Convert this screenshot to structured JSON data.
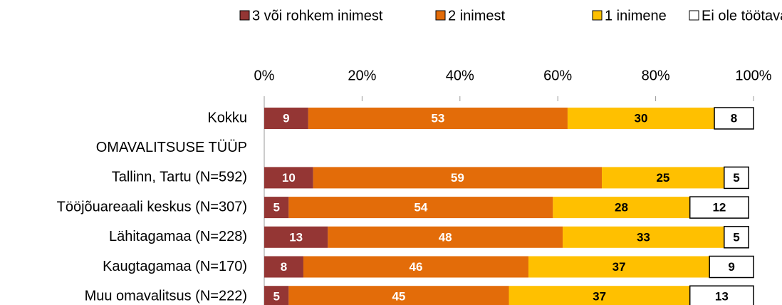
{
  "chart_data": {
    "type": "stacked_bar",
    "orientation": "horizontal",
    "categories": [
      "Kokku",
      "OMAVALITSUSE TÜÜP",
      "Tallinn, Tartu (N=592)",
      "Tööjõuareaali keskus (N=307)",
      "Lähitagamaa (N=228)",
      "Kaugtagamaa (N=170)",
      "Muu omavalitsus (N=222)"
    ],
    "series": [
      {
        "name": "3 või rohkem  inimest",
        "color": "#943634",
        "label_color": "#ffffff",
        "values": [
          9,
          null,
          10,
          5,
          13,
          8,
          5
        ]
      },
      {
        "name": "2 inimest",
        "color": "#e36c09",
        "label_color": "#ffffff",
        "values": [
          53,
          null,
          59,
          54,
          48,
          46,
          45
        ]
      },
      {
        "name": "1 inimene",
        "color": "#ffc000",
        "label_color": "#000000",
        "values": [
          30,
          null,
          25,
          28,
          33,
          37,
          37
        ]
      },
      {
        "name": "Ei ole töötavaid inimesi",
        "color": "#ffffff",
        "label_color": "#000000",
        "values": [
          8,
          null,
          5,
          12,
          5,
          9,
          13
        ]
      }
    ],
    "xlim": [
      0,
      100
    ],
    "xticks": [
      {
        "value": 0,
        "label": "0%"
      },
      {
        "value": 20,
        "label": "20%"
      },
      {
        "value": 40,
        "label": "40%"
      },
      {
        "value": 60,
        "label": "60%"
      },
      {
        "value": 80,
        "label": "80%"
      },
      {
        "value": 100,
        "label": "100%"
      }
    ],
    "legend": "top"
  }
}
